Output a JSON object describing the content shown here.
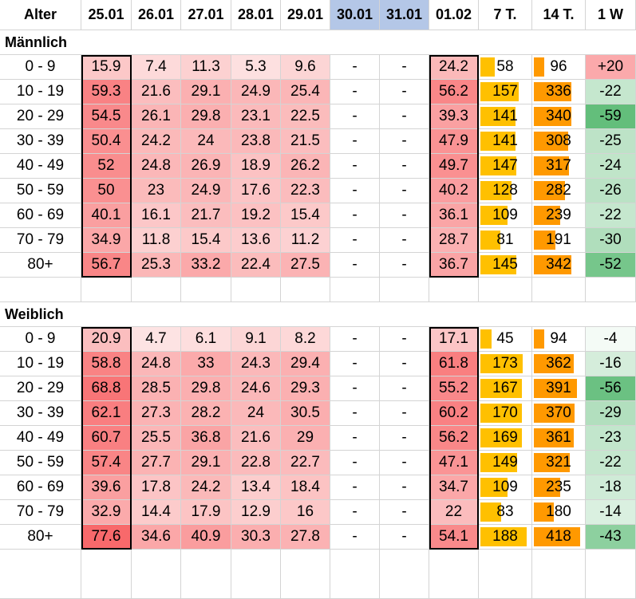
{
  "header": {
    "age_label": "Alter",
    "dates": [
      "25.01",
      "26.01",
      "27.01",
      "28.01",
      "29.01",
      "30.01",
      "31.01",
      "01.02"
    ],
    "weekend_dates": [
      "30.01",
      "31.01"
    ],
    "col_7d": "7 T.",
    "col_14d": "14 T.",
    "col_1w": "1 W"
  },
  "colors": {
    "heat_low": "#fde3e3",
    "heat_high": "#f8696b",
    "bar_7d": "#ffc000",
    "bar_14d": "#ff9900",
    "change_up": "#f8696b",
    "change_down": "#63be7b",
    "weekend_header": "#b4c7e7"
  },
  "sections": [
    {
      "title": "Männlich",
      "rows": [
        {
          "age": "0 - 9",
          "values": [
            "15.9",
            "7.4",
            "11.3",
            "5.3",
            "9.6",
            "-",
            "-",
            "24.2"
          ],
          "d7": "58",
          "d14": "96",
          "w1": "+20"
        },
        {
          "age": "10 - 19",
          "values": [
            "59.3",
            "21.6",
            "29.1",
            "24.9",
            "25.4",
            "-",
            "-",
            "56.2"
          ],
          "d7": "157",
          "d14": "336",
          "w1": "-22"
        },
        {
          "age": "20 - 29",
          "values": [
            "54.5",
            "26.1",
            "29.8",
            "23.1",
            "22.5",
            "-",
            "-",
            "39.3"
          ],
          "d7": "141",
          "d14": "340",
          "w1": "-59"
        },
        {
          "age": "30 - 39",
          "values": [
            "50.4",
            "24.2",
            "24",
            "23.8",
            "21.5",
            "-",
            "-",
            "47.9"
          ],
          "d7": "141",
          "d14": "308",
          "w1": "-25"
        },
        {
          "age": "40 - 49",
          "values": [
            "52",
            "24.8",
            "26.9",
            "18.9",
            "26.2",
            "-",
            "-",
            "49.7"
          ],
          "d7": "147",
          "d14": "317",
          "w1": "-24"
        },
        {
          "age": "50 - 59",
          "values": [
            "50",
            "23",
            "24.9",
            "17.6",
            "22.3",
            "-",
            "-",
            "40.2"
          ],
          "d7": "128",
          "d14": "282",
          "w1": "-26"
        },
        {
          "age": "60 - 69",
          "values": [
            "40.1",
            "16.1",
            "21.7",
            "19.2",
            "15.4",
            "-",
            "-",
            "36.1"
          ],
          "d7": "109",
          "d14": "239",
          "w1": "-22"
        },
        {
          "age": "70 - 79",
          "values": [
            "34.9",
            "11.8",
            "15.4",
            "13.6",
            "11.2",
            "-",
            "-",
            "28.7"
          ],
          "d7": "81",
          "d14": "191",
          "w1": "-30"
        },
        {
          "age": "80+",
          "values": [
            "56.7",
            "25.3",
            "33.2",
            "22.4",
            "27.5",
            "-",
            "-",
            "36.7"
          ],
          "d7": "145",
          "d14": "342",
          "w1": "-52"
        }
      ]
    },
    {
      "title": "Weiblich",
      "rows": [
        {
          "age": "0 - 9",
          "values": [
            "20.9",
            "4.7",
            "6.1",
            "9.1",
            "8.2",
            "-",
            "-",
            "17.1"
          ],
          "d7": "45",
          "d14": "94",
          "w1": "-4"
        },
        {
          "age": "10 - 19",
          "values": [
            "58.8",
            "24.8",
            "33",
            "24.3",
            "29.4",
            "-",
            "-",
            "61.8"
          ],
          "d7": "173",
          "d14": "362",
          "w1": "-16"
        },
        {
          "age": "20 - 29",
          "values": [
            "68.8",
            "28.5",
            "29.8",
            "24.6",
            "29.3",
            "-",
            "-",
            "55.2"
          ],
          "d7": "167",
          "d14": "391",
          "w1": "-56"
        },
        {
          "age": "30 - 39",
          "values": [
            "62.1",
            "27.3",
            "28.2",
            "24",
            "30.5",
            "-",
            "-",
            "60.2"
          ],
          "d7": "170",
          "d14": "370",
          "w1": "-29"
        },
        {
          "age": "40 - 49",
          "values": [
            "60.7",
            "25.5",
            "36.8",
            "21.6",
            "29",
            "-",
            "-",
            "56.2"
          ],
          "d7": "169",
          "d14": "361",
          "w1": "-23"
        },
        {
          "age": "50 - 59",
          "values": [
            "57.4",
            "27.7",
            "29.1",
            "22.8",
            "22.7",
            "-",
            "-",
            "47.1"
          ],
          "d7": "149",
          "d14": "321",
          "w1": "-22"
        },
        {
          "age": "60 - 69",
          "values": [
            "39.6",
            "17.8",
            "24.2",
            "13.4",
            "18.4",
            "-",
            "-",
            "34.7"
          ],
          "d7": "109",
          "d14": "235",
          "w1": "-18"
        },
        {
          "age": "70 - 79",
          "values": [
            "32.9",
            "14.4",
            "17.9",
            "12.9",
            "16",
            "-",
            "-",
            "22"
          ],
          "d7": "83",
          "d14": "180",
          "w1": "-14"
        },
        {
          "age": "80+",
          "values": [
            "77.6",
            "34.6",
            "40.9",
            "30.3",
            "27.8",
            "-",
            "-",
            "54.1"
          ],
          "d7": "188",
          "d14": "418",
          "w1": "-43"
        }
      ]
    }
  ]
}
